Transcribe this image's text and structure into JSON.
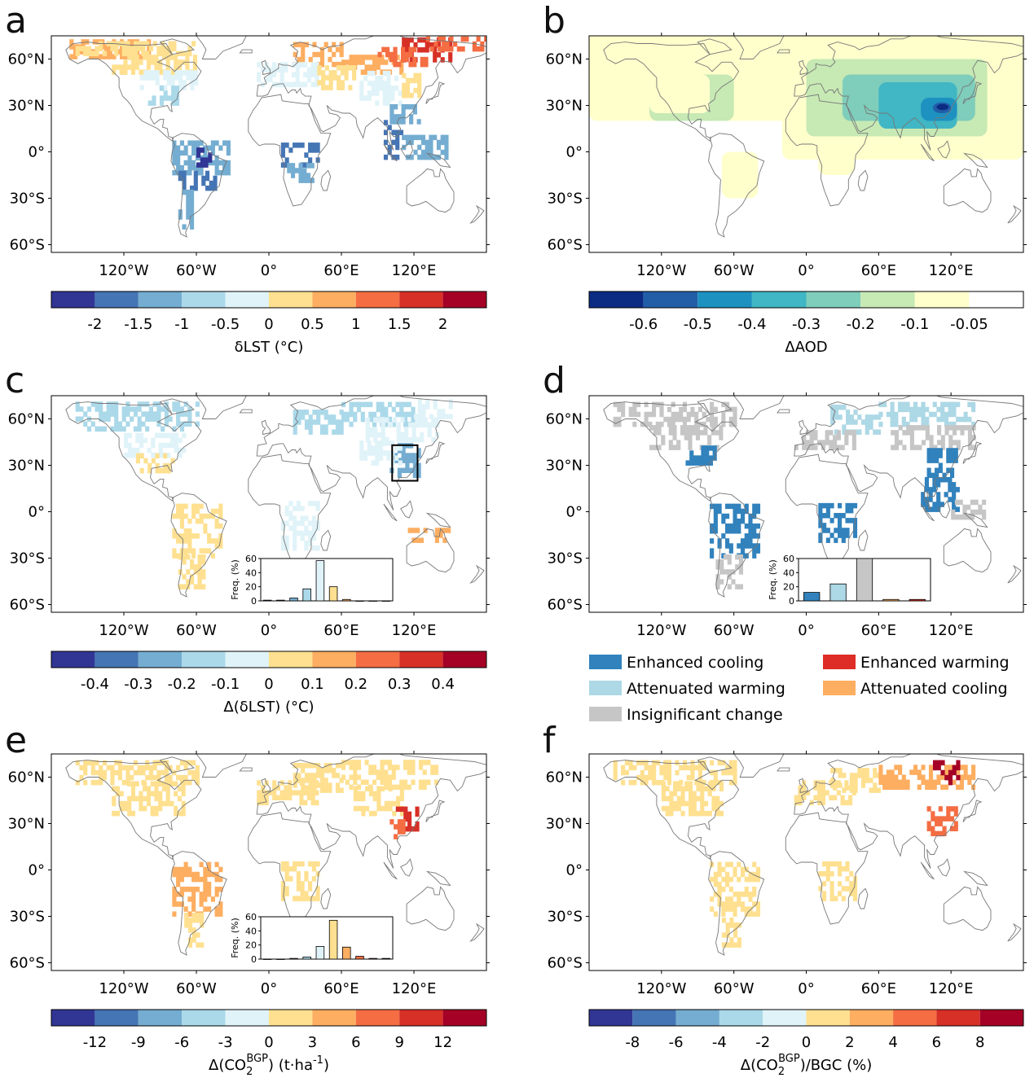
{
  "axes": {
    "lon_ticks": [
      "120°W",
      "60°W",
      "0°",
      "60°E",
      "120°E"
    ],
    "lat_ticks": [
      "60°N",
      "30°N",
      "0°",
      "30°S",
      "60°S"
    ]
  },
  "panels": [
    {
      "letter": "a",
      "colorbar": {
        "label": "δLST (°C)",
        "tick_labels": [
          "-2",
          "-1.5",
          "-1",
          "-0.5",
          "0",
          "0.5",
          "1",
          "1.5",
          "2"
        ],
        "colors": [
          "#313695",
          "#4575b4",
          "#74add1",
          "#abd9e9",
          "#e0f3f8",
          "#fee090",
          "#fdae61",
          "#f46d43",
          "#d73027",
          "#a50026"
        ]
      }
    },
    {
      "letter": "b",
      "colorbar": {
        "label": "ΔAOD",
        "tick_labels": [
          "-0.6",
          "-0.5",
          "-0.4",
          "-0.3",
          "-0.2",
          "-0.1",
          "-0.05"
        ],
        "colors": [
          "#0c2c84",
          "#225ea8",
          "#1d91c0",
          "#41b6c4",
          "#7fcdbb",
          "#c7e9b4",
          "#ffffcc",
          "#ffffff"
        ]
      }
    },
    {
      "letter": "c",
      "colorbar": {
        "label": "Δ(δLST) (°C)",
        "tick_labels": [
          "-0.4",
          "-0.3",
          "-0.2",
          "-0.1",
          "0",
          "0.1",
          "0.2",
          "0.3",
          "0.4"
        ],
        "colors": [
          "#313695",
          "#4575b4",
          "#74add1",
          "#abd9e9",
          "#e0f3f8",
          "#fee090",
          "#fdae61",
          "#f46d43",
          "#d73027",
          "#a50026"
        ]
      },
      "inset": {
        "ylabel": "Freq. (%)",
        "ytick_labels": [
          "0",
          "20",
          "40",
          "60"
        ],
        "ymax": 60,
        "bars": [
          1,
          1,
          4,
          17,
          57,
          20,
          2,
          0,
          0,
          0
        ],
        "bar_colors": [
          "#313695",
          "#4575b4",
          "#74add1",
          "#abd9e9",
          "#e0f3f8",
          "#fee090",
          "#fdae61",
          "#f46d43",
          "#d73027",
          "#a50026"
        ]
      }
    },
    {
      "letter": "d",
      "legend": [
        {
          "label": "Enhanced cooling",
          "color": "#3182bd"
        },
        {
          "label": "Enhanced warming",
          "color": "#de2d26"
        },
        {
          "label": "Attenuated warming",
          "color": "#add8e6"
        },
        {
          "label": "Attenuated cooling",
          "color": "#fdae61"
        },
        {
          "label": "Insignificant change",
          "color": "#c6c6c6"
        }
      ],
      "inset": {
        "ylabel": "Freq. (%)",
        "ytick_labels": [
          "0",
          "20",
          "40",
          "60"
        ],
        "ymax": 60,
        "bars": [
          12,
          24,
          60,
          2,
          2
        ],
        "bar_colors": [
          "#3182bd",
          "#add8e6",
          "#c6c6c6",
          "#fdae61",
          "#de2d26"
        ]
      }
    },
    {
      "letter": "e",
      "colorbar": {
        "label_main": "Δ(CO",
        "label_sub": "2",
        "label_sup": "BGP",
        "label_tail": ") (t·ha",
        "label_tail_sup": "-1",
        "label_end": ")",
        "tick_labels": [
          "-12",
          "-9",
          "-6",
          "-3",
          "0",
          "3",
          "6",
          "9",
          "12"
        ],
        "colors": [
          "#313695",
          "#4575b4",
          "#74add1",
          "#abd9e9",
          "#e0f3f8",
          "#fee090",
          "#fdae61",
          "#f46d43",
          "#d73027",
          "#a50026"
        ]
      },
      "inset": {
        "ylabel": "Freq. (%)",
        "ytick_labels": [
          "0",
          "20",
          "40",
          "60"
        ],
        "ymax": 60,
        "bars": [
          0,
          0,
          1,
          3,
          18,
          55,
          17,
          4,
          1,
          1
        ],
        "bar_colors": [
          "#313695",
          "#4575b4",
          "#74add1",
          "#abd9e9",
          "#e0f3f8",
          "#fee090",
          "#fdae61",
          "#f46d43",
          "#d73027",
          "#a50026"
        ]
      }
    },
    {
      "letter": "f",
      "colorbar": {
        "label_main": "Δ(CO",
        "label_sub": "2",
        "label_sup": "BGP",
        "label_tail": ")/BGC (%)",
        "tick_labels": [
          "-8",
          "-6",
          "-4",
          "-2",
          "0",
          "2",
          "4",
          "6",
          "8"
        ],
        "colors": [
          "#313695",
          "#4575b4",
          "#74add1",
          "#abd9e9",
          "#e0f3f8",
          "#fee090",
          "#fdae61",
          "#f46d43",
          "#d73027",
          "#a50026"
        ]
      }
    }
  ]
}
